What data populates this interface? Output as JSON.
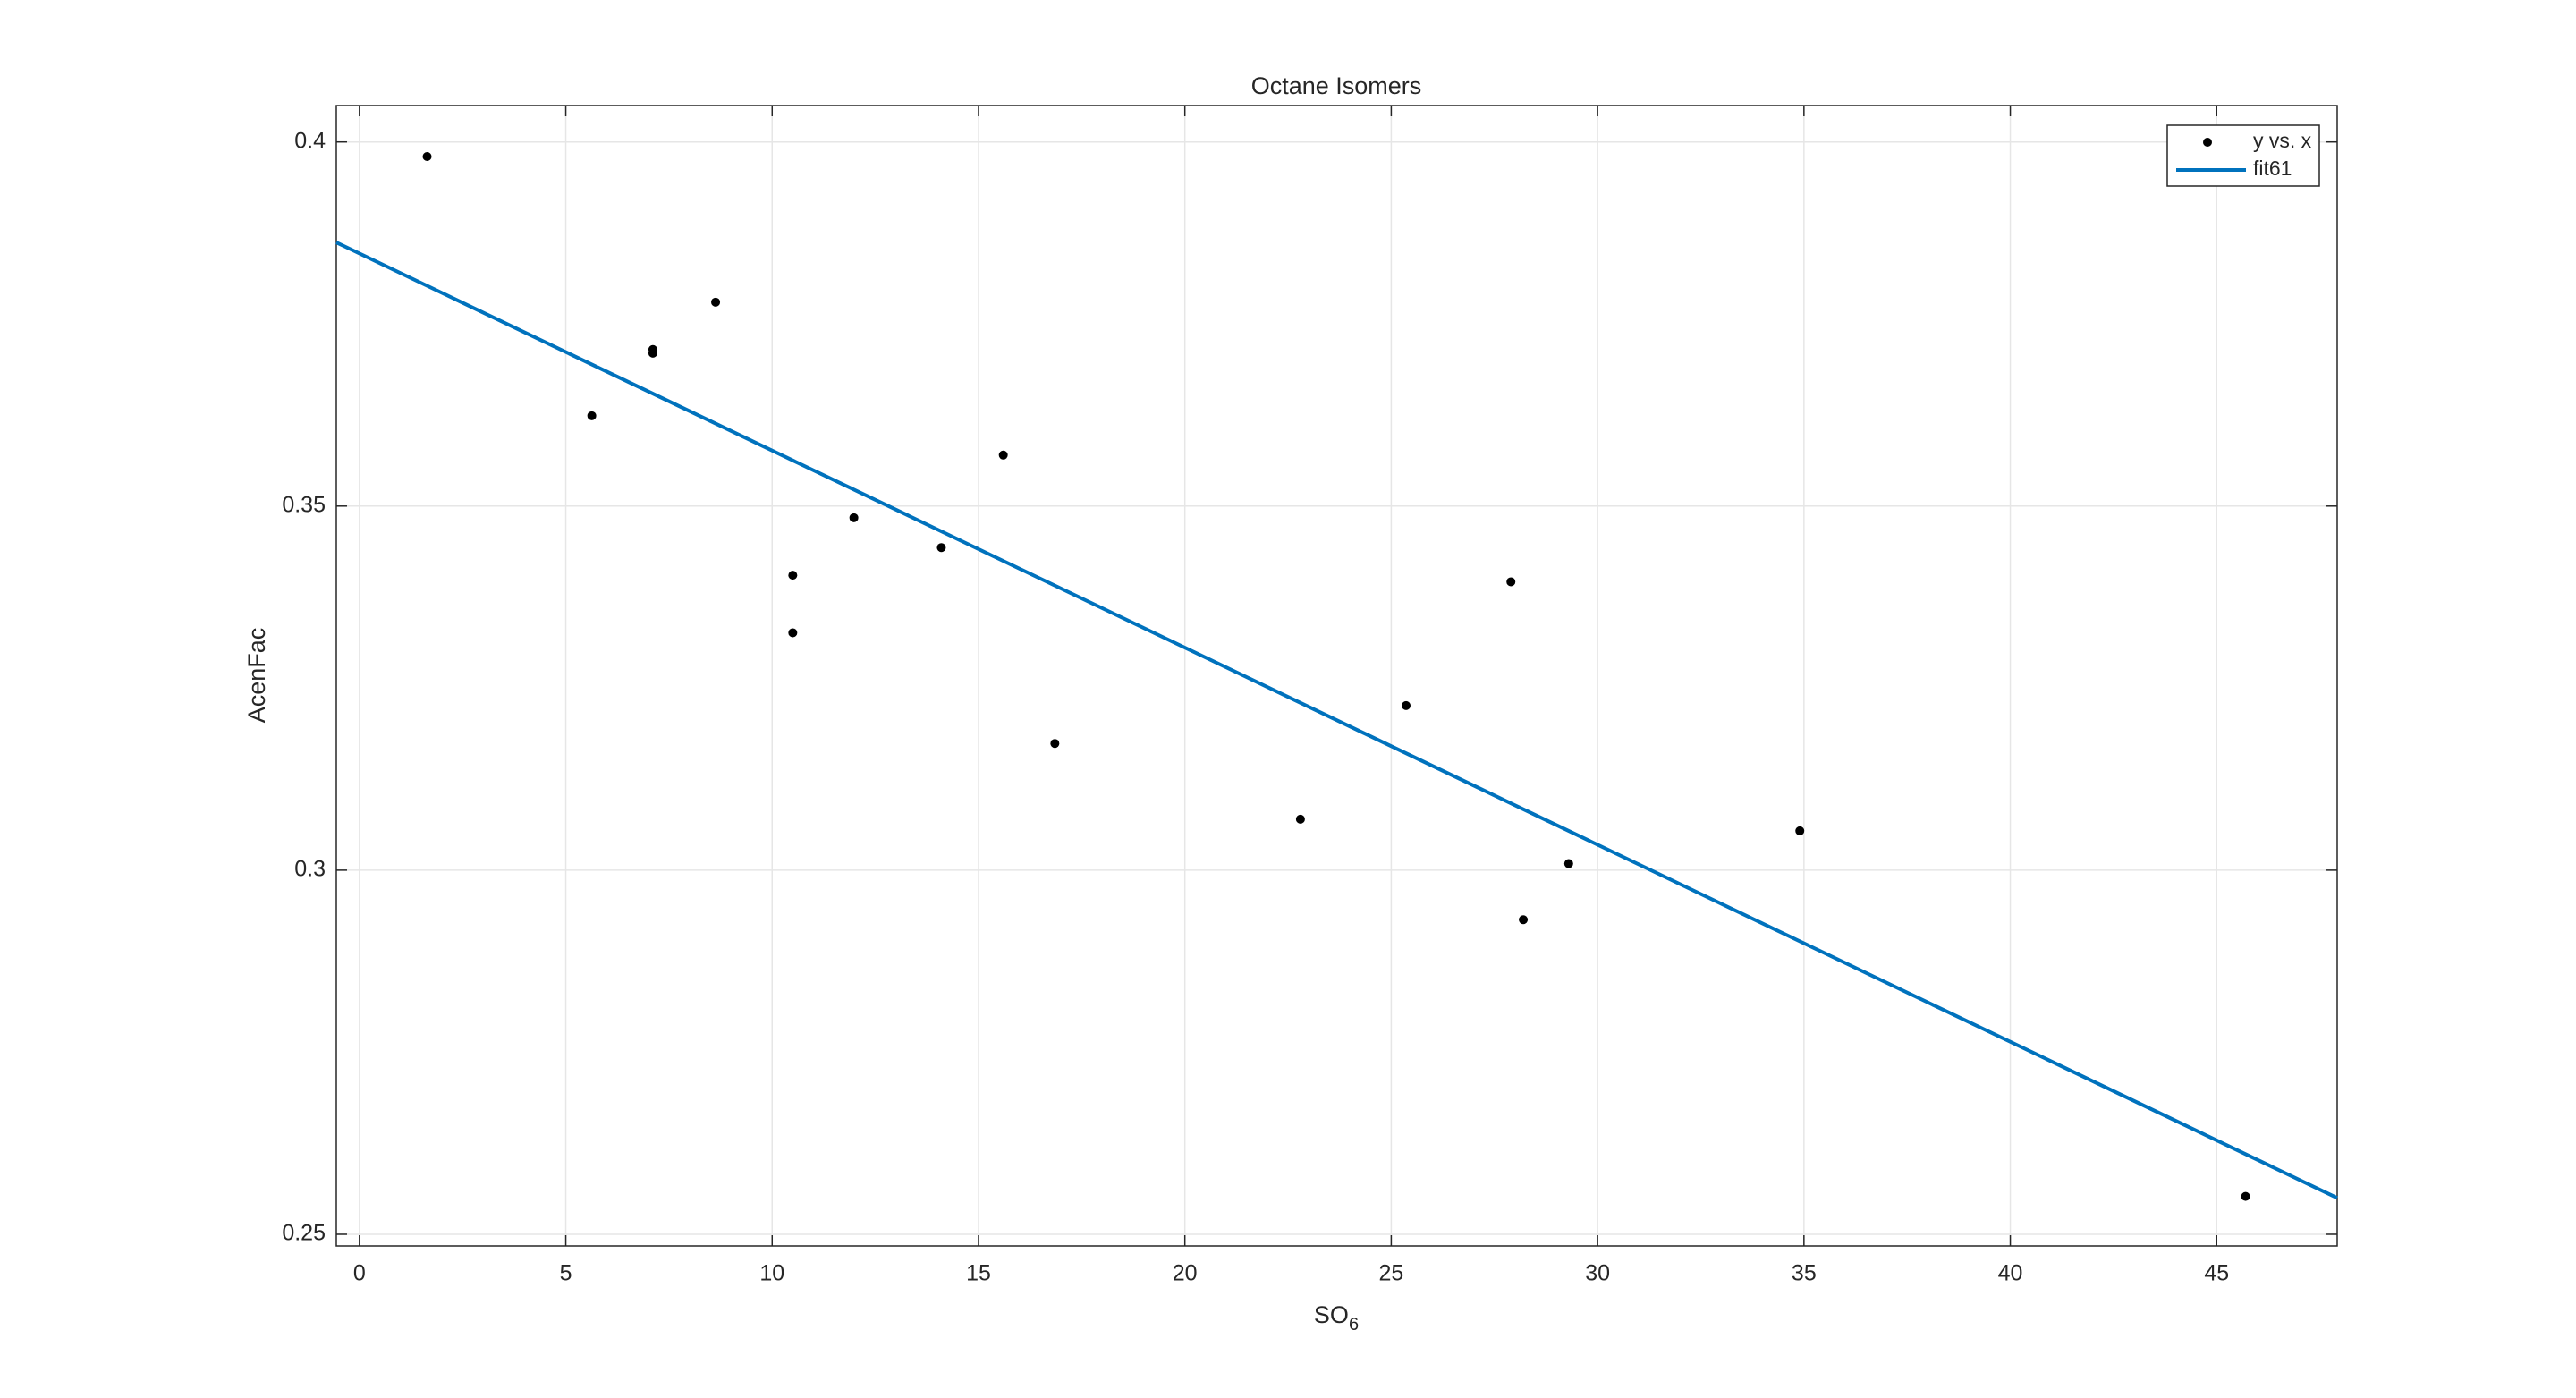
{
  "chart_data": {
    "type": "scatter",
    "title": "Octane Isomers",
    "xlabel": "SO",
    "xlabel_subscript": "6",
    "ylabel": "AcenFac",
    "xlim": [
      -0.56,
      47.92
    ],
    "ylim": [
      0.2484,
      0.405
    ],
    "xticks": [
      0,
      5,
      10,
      15,
      20,
      25,
      30,
      35,
      40,
      45
    ],
    "yticks": [
      0.25,
      0.3,
      0.35,
      0.4
    ],
    "grid": true,
    "legend": "upper right",
    "series": [
      {
        "name": "y vs. x",
        "color": "#000000",
        "mode": "markers",
        "x": [
          1.64,
          5.63,
          7.11,
          7.11,
          8.63,
          10.5,
          10.5,
          11.98,
          14.1,
          15.6,
          16.85,
          22.8,
          25.36,
          27.9,
          28.2,
          29.3,
          34.9,
          45.7
        ],
        "values": [
          0.398,
          0.3624,
          0.3715,
          0.371,
          0.378,
          0.3405,
          0.3326,
          0.3484,
          0.3443,
          0.357,
          0.3174,
          0.307,
          0.3226,
          0.3396,
          0.2932,
          0.3009,
          0.3054,
          0.2552
        ]
      },
      {
        "name": "fit61",
        "color": "#0072bd",
        "mode": "line",
        "x": [
          -0.56,
          47.92
        ],
        "values": [
          0.3862,
          0.255
        ]
      }
    ]
  }
}
